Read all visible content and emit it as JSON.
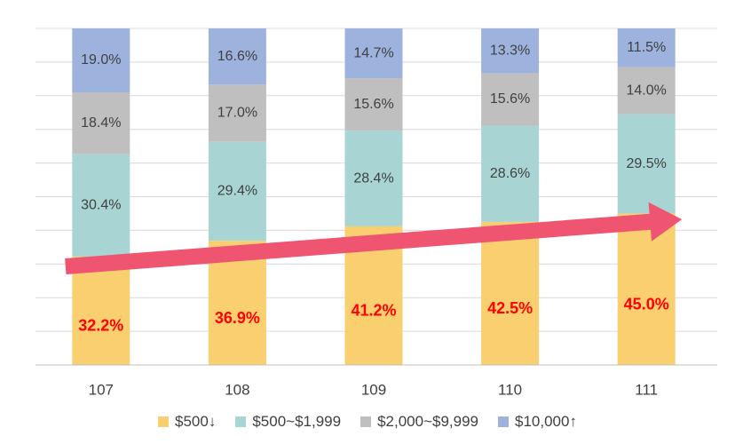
{
  "chart_data": {
    "type": "bar",
    "stacked": true,
    "percent_stacked": true,
    "categories": [
      "107",
      "108",
      "109",
      "110",
      "111"
    ],
    "series": [
      {
        "name": "$500↓",
        "color": "#F9CF6F",
        "values": [
          32.2,
          36.9,
          41.2,
          42.5,
          45.0
        ],
        "labels": [
          "32.2%",
          "36.9%",
          "41.2%",
          "42.5%",
          "45.0%"
        ],
        "label_color": "#FF0000",
        "label_bold": true
      },
      {
        "name": "$500~$1,999",
        "color": "#A8D5D3",
        "values": [
          30.4,
          29.4,
          28.4,
          28.6,
          29.5
        ],
        "labels": [
          "30.4%",
          "29.4%",
          "28.4%",
          "28.6%",
          "29.5%"
        ],
        "label_color": "#404040",
        "label_bold": false
      },
      {
        "name": "$2,000~$9,999",
        "color": "#BFBFBF",
        "values": [
          18.4,
          17.0,
          15.6,
          15.6,
          14.0
        ],
        "labels": [
          "18.4%",
          "17.0%",
          "15.6%",
          "15.6%",
          "14.0%"
        ],
        "label_color": "#404040",
        "label_bold": false
      },
      {
        "name": "$10,000↑",
        "color": "#9DB3DE",
        "values": [
          19.0,
          16.6,
          14.7,
          13.3,
          11.5
        ],
        "labels": [
          "19.0%",
          "16.6%",
          "14.7%",
          "13.3%",
          "11.5%"
        ],
        "label_color": "#404040",
        "label_bold": false
      }
    ],
    "ylim": [
      0,
      100
    ],
    "grid": true,
    "legend_position": "bottom",
    "annotation": {
      "type": "arrow",
      "color": "#EF5470",
      "from_category": "107",
      "to_category": "111",
      "direction": "upward trend"
    }
  }
}
